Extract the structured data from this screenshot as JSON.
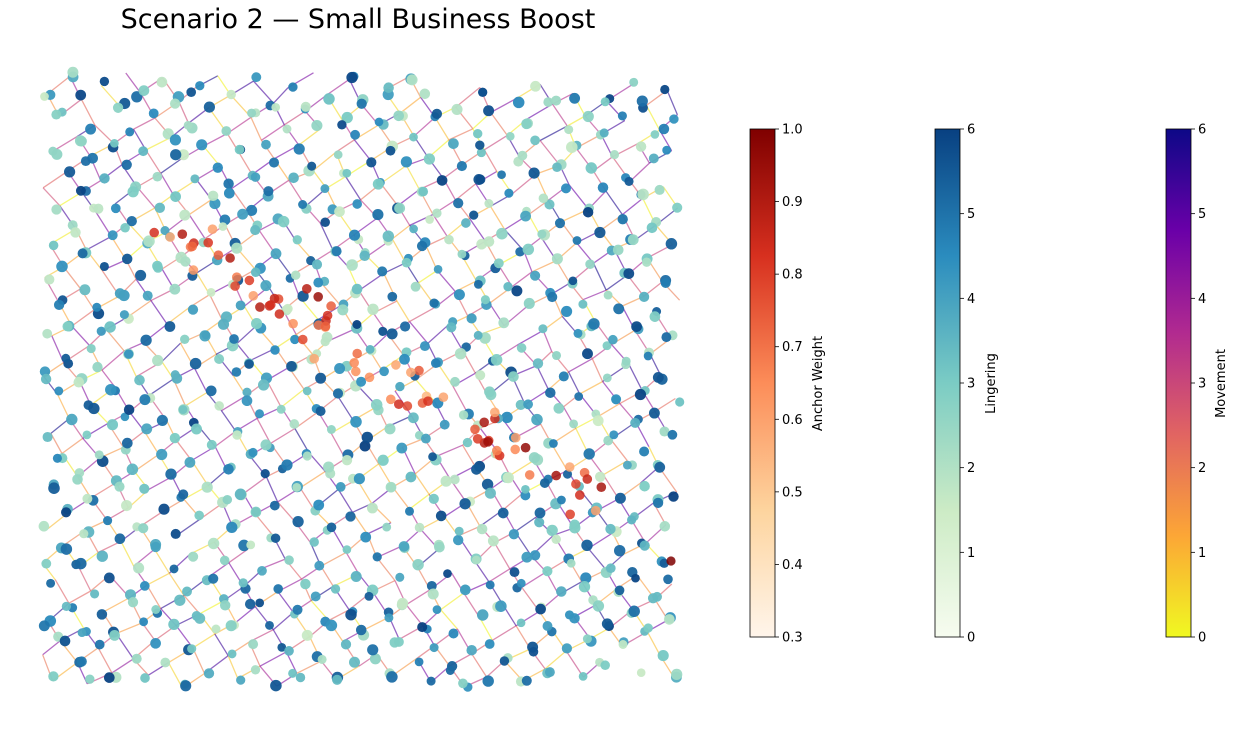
{
  "colors": {
    "anchor": [
      "#fff5eb",
      "#fdd49e",
      "#fc8d59",
      "#d7301f",
      "#7f0000"
    ],
    "lingering": [
      "#f7fcf0",
      "#ccebc5",
      "#7bccc4",
      "#2b8cbe",
      "#084081"
    ],
    "movement": [
      "#f0f921",
      "#fca636",
      "#e16462",
      "#b12a90",
      "#6a00a8",
      "#0d0887"
    ]
  },
  "chart_data": {
    "type": "scatter",
    "title": "Scenario 2 — Small Business Boost",
    "description_counts": {
      "nodes_approx": 1400,
      "edge_grid_orientation": "rotated ~30°"
    },
    "colorbars": [
      {
        "id": "anchor",
        "label": "Anchor Weight",
        "range": [
          0.3,
          1.0
        ],
        "ticks": [
          "0.3",
          "0.4",
          "0.5",
          "0.6",
          "0.7",
          "0.8",
          "0.9",
          "1.0"
        ],
        "colormap": "OrRd"
      },
      {
        "id": "lingering",
        "label": "Lingering",
        "range": [
          0,
          6
        ],
        "ticks": [
          "0",
          "1",
          "2",
          "3",
          "4",
          "5",
          "6"
        ],
        "colormap": "GnBu"
      },
      {
        "id": "movement",
        "label": "Movement",
        "range": [
          0,
          6
        ],
        "ticks": [
          "0",
          "1",
          "2",
          "3",
          "4",
          "5",
          "6"
        ],
        "colormap": "plasma_r"
      }
    ]
  }
}
